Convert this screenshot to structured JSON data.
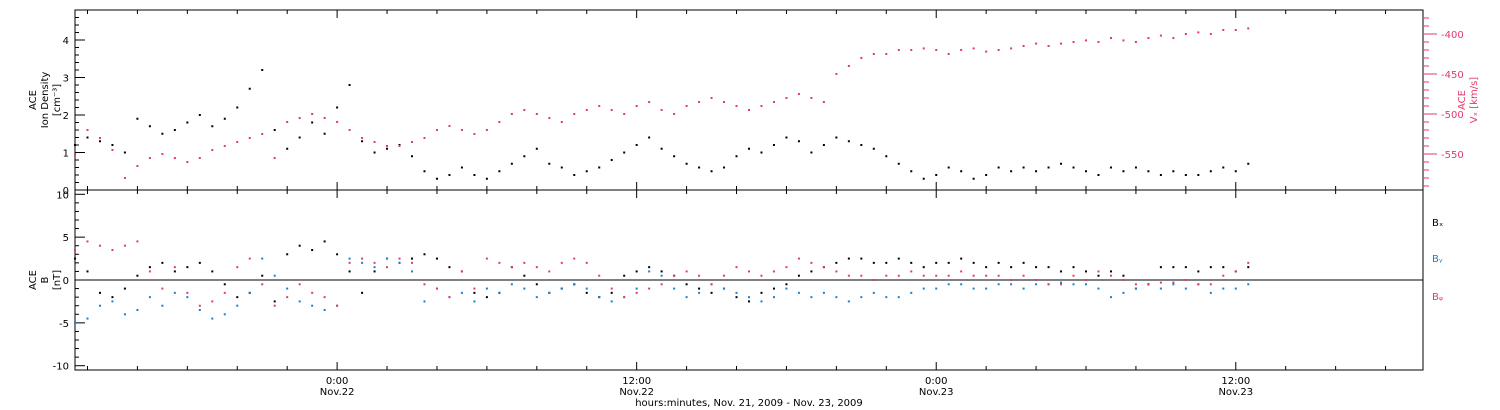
{
  "colors": {
    "axes": "#000000",
    "density": "#000000",
    "speed": "#e23a6a",
    "bx": "#000000",
    "by": "#1a7fd6",
    "bz": "#e23a6a"
  },
  "x_axis": {
    "label": "hours:minutes, Nov. 21, 2009 - Nov. 23, 2009",
    "range_hours": [
      -10.5,
      43.5
    ],
    "major_ticks": [
      {
        "hour": 0,
        "time": "0:00",
        "date": "Nov.22"
      },
      {
        "hour": 12,
        "time": "12:00",
        "date": "Nov.22"
      },
      {
        "hour": 24,
        "time": "0:00",
        "date": "Nov.23"
      },
      {
        "hour": 36,
        "time": "12:00",
        "date": "Nov.23"
      }
    ],
    "minor_tick_step_hours": 2
  },
  "chart_data": [
    {
      "type": "scatter",
      "panel": "top",
      "ylabel": [
        "ACE",
        "Ion Density",
        "[cm⁻³]"
      ],
      "ylim": [
        0,
        4.8
      ],
      "yticks": [
        "0",
        "1",
        "2",
        "3",
        "4"
      ],
      "y2label": [
        "ACE",
        "Vₓ [km/s]"
      ],
      "y2lim": [
        -595,
        -370
      ],
      "y2ticks": [
        "-400",
        "-450",
        "-500",
        "-550"
      ],
      "series": [
        {
          "axis": "left",
          "x": [
            -10.5,
            -10,
            -9.5,
            -9,
            -8.5,
            -8,
            -7.5,
            -7,
            -6.5,
            -6,
            -5.5,
            -5,
            -4.5,
            -4,
            -3.5,
            -3,
            -2.5,
            -2,
            -1.5,
            -1,
            -0.5,
            0,
            0.5,
            1,
            1.5,
            2,
            2.5,
            3,
            3.5,
            4,
            4.5,
            5,
            5.5,
            6,
            6.5,
            7,
            7.5,
            8,
            8.5,
            9,
            9.5,
            10,
            10.5,
            11,
            11.5,
            12,
            12.5,
            13,
            13.5,
            14,
            14.5,
            15,
            15.5,
            16,
            16.5,
            17,
            17.5,
            18,
            18.5,
            19,
            19.5,
            20,
            20.5,
            21,
            21.5,
            22,
            22.5,
            23,
            23.5,
            24,
            24.5,
            25,
            25.5,
            26,
            26.5,
            27,
            27.5,
            28,
            28.5,
            29,
            29.5,
            30,
            30.5,
            31,
            31.5,
            32,
            32.5,
            33,
            33.5,
            34,
            34.5,
            35,
            35.5,
            36,
            36.5
          ],
          "y": [
            1.2,
            1.4,
            1.3,
            1.2,
            1.0,
            1.9,
            1.7,
            1.5,
            1.6,
            1.8,
            2.0,
            1.7,
            1.9,
            2.2,
            2.7,
            3.2,
            1.6,
            1.1,
            1.4,
            1.8,
            1.5,
            2.2,
            2.8,
            1.3,
            1.0,
            1.1,
            1.2,
            0.9,
            0.5,
            0.3,
            0.4,
            0.6,
            0.4,
            0.3,
            0.5,
            0.7,
            0.9,
            1.1,
            0.7,
            0.6,
            0.4,
            0.5,
            0.6,
            0.8,
            1.0,
            1.2,
            1.4,
            1.1,
            0.9,
            0.7,
            0.6,
            0.5,
            0.6,
            0.9,
            1.1,
            1.0,
            1.2,
            1.4,
            1.3,
            1.0,
            1.2,
            1.4,
            1.3,
            1.2,
            1.1,
            0.9,
            0.7,
            0.5,
            0.3,
            0.4,
            0.6,
            0.5,
            0.3,
            0.4,
            0.6,
            0.5,
            0.6,
            0.5,
            0.6,
            0.7,
            0.6,
            0.5,
            0.4,
            0.6,
            0.5,
            0.6,
            0.5,
            0.4,
            0.5,
            0.4,
            0.4,
            0.5,
            0.6,
            0.5,
            0.7
          ]
        },
        {
          "axis": "right",
          "x": [
            -10.5,
            -10,
            -9.5,
            -9,
            -8.5,
            -8,
            -7.5,
            -7,
            -6.5,
            -6,
            -5.5,
            -5,
            -4.5,
            -4,
            -3.5,
            -3,
            -2.5,
            -2,
            -1.5,
            -1,
            -0.5,
            0,
            0.5,
            1,
            1.5,
            2,
            2.5,
            3,
            3.5,
            4,
            4.5,
            5,
            5.5,
            6,
            6.5,
            7,
            7.5,
            8,
            8.5,
            9,
            9.5,
            10,
            10.5,
            11,
            11.5,
            12,
            12.5,
            13,
            13.5,
            14,
            14.5,
            15,
            15.5,
            16,
            16.5,
            17,
            17.5,
            18,
            18.5,
            19,
            19.5,
            20,
            20.5,
            21,
            21.5,
            22,
            22.5,
            23,
            23.5,
            24,
            24.5,
            25,
            25.5,
            26,
            26.5,
            27,
            27.5,
            28,
            28.5,
            29,
            29.5,
            30,
            30.5,
            31,
            31.5,
            32,
            32.5,
            33,
            33.5,
            34,
            34.5,
            35,
            35.5,
            36,
            36.5
          ],
          "y": [
            -550,
            -520,
            -530,
            -545,
            -580,
            -565,
            -555,
            -550,
            -555,
            -560,
            -555,
            -545,
            -540,
            -535,
            -530,
            -525,
            -555,
            -510,
            -505,
            -500,
            -505,
            -510,
            -520,
            -530,
            -535,
            -540,
            -540,
            -535,
            -530,
            -520,
            -515,
            -520,
            -525,
            -520,
            -510,
            -500,
            -495,
            -500,
            -505,
            -510,
            -500,
            -495,
            -490,
            -495,
            -500,
            -490,
            -485,
            -495,
            -500,
            -490,
            -485,
            -480,
            -485,
            -490,
            -495,
            -490,
            -485,
            -480,
            -475,
            -480,
            -485,
            -450,
            -440,
            -430,
            -425,
            -425,
            -420,
            -420,
            -418,
            -420,
            -425,
            -420,
            -418,
            -422,
            -420,
            -418,
            -415,
            -412,
            -415,
            -412,
            -410,
            -408,
            -410,
            -405,
            -408,
            -410,
            -405,
            -402,
            -405,
            -400,
            -398,
            -400,
            -395,
            -395,
            -393
          ]
        }
      ]
    },
    {
      "type": "scatter",
      "panel": "bottom",
      "ylabel": [
        "ACE",
        "B",
        "[nT]"
      ],
      "ylim": [
        -10.5,
        10.5
      ],
      "yticks": [
        "-10",
        "-5",
        "0",
        "5",
        "10"
      ],
      "series": [
        {
          "name": "Bₓ",
          "x": [
            -10.5,
            -10,
            -9.5,
            -9,
            -8.5,
            -8,
            -7.5,
            -7,
            -6.5,
            -6,
            -5.5,
            -5,
            -4.5,
            -4,
            -3.5,
            -3,
            -2.5,
            -2,
            -1.5,
            -1,
            -0.5,
            0,
            0.5,
            1,
            1.5,
            2,
            2.5,
            3,
            3.5,
            4,
            4.5,
            5,
            5.5,
            6,
            6.5,
            7,
            7.5,
            8,
            8.5,
            9,
            9.5,
            10,
            10.5,
            11,
            11.5,
            12,
            12.5,
            13,
            13.5,
            14,
            14.5,
            15,
            15.5,
            16,
            16.5,
            17,
            17.5,
            18,
            18.5,
            19,
            19.5,
            20,
            20.5,
            21,
            21.5,
            22,
            22.5,
            23,
            23.5,
            24,
            24.5,
            25,
            25.5,
            26,
            26.5,
            27,
            27.5,
            28,
            28.5,
            29,
            29.5,
            30,
            30.5,
            31,
            31.5,
            32,
            32.5,
            33,
            33.5,
            34,
            34.5,
            35,
            35.5,
            36,
            36.5
          ],
          "y": [
            2.5,
            1.0,
            -1.5,
            -2.0,
            -1.0,
            0.5,
            1.5,
            2.0,
            1.0,
            1.5,
            2.0,
            1.0,
            -0.5,
            -2.0,
            -1.5,
            0.5,
            -2.5,
            3.0,
            4.0,
            3.5,
            4.5,
            3.0,
            1.0,
            -1.5,
            1.0,
            2.5,
            2.0,
            2.5,
            3.0,
            2.5,
            1.5,
            1.0,
            -1.5,
            -2.0,
            -1.5,
            1.5,
            0.5,
            -0.5,
            -1.5,
            -1.0,
            -0.5,
            -1.5,
            -2.0,
            -1.5,
            0.5,
            1.0,
            1.5,
            1.0,
            0.5,
            -0.5,
            -1.0,
            -1.5,
            -1.0,
            -2.0,
            -2.5,
            -1.5,
            -1.0,
            -0.5,
            0.5,
            1.0,
            1.5,
            2.0,
            2.5,
            2.5,
            2.0,
            2.0,
            2.5,
            2.0,
            1.5,
            2.0,
            2.0,
            2.5,
            2.0,
            1.5,
            2.0,
            1.5,
            2.0,
            1.5,
            1.5,
            1.0,
            1.5,
            1.0,
            0.5,
            1.0,
            0.5,
            -1.0,
            -0.5,
            1.5,
            1.5,
            1.5,
            1.0,
            1.5,
            1.5,
            1.0,
            1.5
          ]
        },
        {
          "name": "Bᵧ",
          "x": [
            -10.5,
            -10,
            -9.5,
            -9,
            -8.5,
            -8,
            -7.5,
            -7,
            -6.5,
            -6,
            -5.5,
            -5,
            -4.5,
            -4,
            -3.5,
            -3,
            -2.5,
            -2,
            -1.5,
            -1,
            -0.5,
            0,
            0.5,
            1,
            1.5,
            2,
            2.5,
            3,
            3.5,
            4,
            4.5,
            5,
            5.5,
            6,
            6.5,
            7,
            7.5,
            8,
            8.5,
            9,
            9.5,
            10,
            10.5,
            11,
            11.5,
            12,
            12.5,
            13,
            13.5,
            14,
            14.5,
            15,
            15.5,
            16,
            16.5,
            17,
            17.5,
            18,
            18.5,
            19,
            19.5,
            20,
            20.5,
            21,
            21.5,
            22,
            22.5,
            23,
            23.5,
            24,
            24.5,
            25,
            25.5,
            26,
            26.5,
            27,
            27.5,
            28,
            28.5,
            29,
            29.5,
            30,
            30.5,
            31,
            31.5,
            32,
            32.5,
            33,
            33.5,
            34,
            34.5,
            35,
            35.5,
            36,
            36.5
          ],
          "y": [
            -5.0,
            -4.5,
            -3.0,
            -2.5,
            -4.0,
            -3.5,
            -2.0,
            -3.0,
            -1.5,
            -2.0,
            -3.5,
            -4.5,
            -4.0,
            -3.0,
            -1.5,
            2.5,
            0.5,
            -1.0,
            -2.5,
            -3.0,
            -3.5,
            -3.0,
            2.5,
            2.0,
            1.5,
            2.5,
            2.0,
            1.0,
            -2.5,
            -1.0,
            -2.0,
            -1.5,
            -2.5,
            -1.0,
            -1.5,
            -0.5,
            -1.0,
            -2.0,
            -1.5,
            -1.0,
            -0.5,
            -1.0,
            -2.0,
            -2.5,
            -2.0,
            -1.0,
            1.0,
            0.5,
            -1.0,
            -2.0,
            -1.5,
            -0.5,
            -1.0,
            -1.5,
            -2.0,
            -2.5,
            -2.0,
            -1.0,
            -1.5,
            -2.0,
            -1.5,
            -2.0,
            -2.5,
            -2.0,
            -1.5,
            -2.0,
            -2.0,
            -1.5,
            -1.0,
            -1.0,
            -0.5,
            -0.5,
            -1.0,
            -1.0,
            -0.5,
            -0.5,
            -1.0,
            -0.5,
            -0.5,
            -0.3,
            -0.5,
            -0.5,
            -1.0,
            -2.0,
            -1.5,
            -1.0,
            -0.5,
            -1.0,
            -0.5,
            -1.0,
            -0.5,
            -1.5,
            -1.0,
            -1.0,
            -0.5
          ]
        },
        {
          "name": "Bᵩ",
          "x": [
            -10.5,
            -10,
            -9.5,
            -9,
            -8.5,
            -8,
            -7.5,
            -7,
            -6.5,
            -6,
            -5.5,
            -5,
            -4.5,
            -4,
            -3.5,
            -3,
            -2.5,
            -2,
            -1.5,
            -1,
            -0.5,
            0,
            0.5,
            1,
            1.5,
            2,
            2.5,
            3,
            3.5,
            4,
            4.5,
            5,
            5.5,
            6,
            6.5,
            7,
            7.5,
            8,
            8.5,
            9,
            9.5,
            10,
            10.5,
            11,
            11.5,
            12,
            12.5,
            13,
            13.5,
            14,
            14.5,
            15,
            15.5,
            16,
            16.5,
            17,
            17.5,
            18,
            18.5,
            19,
            19.5,
            20,
            20.5,
            21,
            21.5,
            22,
            22.5,
            23,
            23.5,
            24,
            24.5,
            25,
            25.5,
            26,
            26.5,
            27,
            27.5,
            28,
            28.5,
            29,
            29.5,
            30,
            30.5,
            31,
            31.5,
            32,
            32.5,
            33,
            33.5,
            34,
            34.5,
            35,
            35.5,
            36,
            36.5
          ],
          "y": [
            3.5,
            4.5,
            4.0,
            3.5,
            4.0,
            4.5,
            1.0,
            -1.0,
            1.5,
            -1.5,
            -3.0,
            -2.5,
            -1.5,
            1.5,
            2.5,
            -0.5,
            -3.0,
            -2.0,
            -0.5,
            -1.5,
            -2.0,
            -3.0,
            2.0,
            2.5,
            2.0,
            1.5,
            2.5,
            2.0,
            -0.5,
            -1.0,
            -2.0,
            1.0,
            -1.0,
            2.5,
            2.0,
            1.5,
            2.0,
            1.5,
            1.0,
            2.0,
            2.5,
            2.0,
            0.5,
            -1.0,
            -2.0,
            -1.5,
            -1.0,
            -0.5,
            0.5,
            1.0,
            0.5,
            -0.5,
            0.5,
            1.5,
            1.0,
            0.5,
            1.0,
            1.5,
            2.5,
            2.0,
            1.5,
            1.0,
            0.5,
            0.5,
            0.0,
            0.5,
            0.5,
            1.0,
            0.5,
            0.5,
            0.5,
            1.0,
            0.5,
            0.5,
            0.5,
            0.0,
            0.5,
            0.0,
            -0.5,
            -0.5,
            0.5,
            0.0,
            1.0,
            0.5,
            0.0,
            -0.5,
            -0.5,
            -0.3,
            -0.3,
            0.0,
            -0.5,
            -0.5,
            0.5,
            1.0,
            2.0
          ]
        }
      ]
    }
  ]
}
